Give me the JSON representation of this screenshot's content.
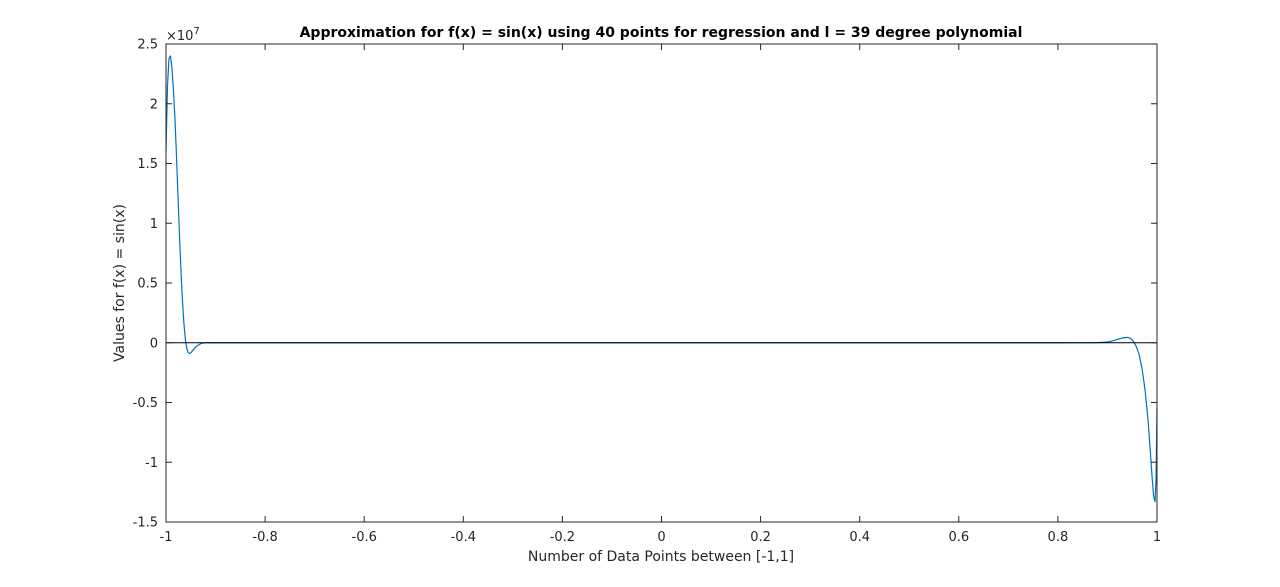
{
  "chart_data": {
    "type": "line",
    "title": "Approximation for f(x) = sin(x) using 40 points for regression and l = 39 degree polynomial",
    "xlabel": "Number of Data Points between [-1,1]",
    "ylabel": "Values for f(x) = sin(x)",
    "xlim": [
      -1,
      1
    ],
    "ylim": [
      -15000000,
      25000000
    ],
    "y_exponent_base": "×10",
    "y_exponent_power": "7",
    "y_tick_scale": 10000000,
    "xticks": [
      -1,
      -0.8,
      -0.6,
      -0.4,
      -0.2,
      0,
      0.2,
      0.4,
      0.6,
      0.8,
      1
    ],
    "xtick_labels": [
      "-1",
      "-0.8",
      "-0.6",
      "-0.4",
      "-0.2",
      "0",
      "0.2",
      "0.4",
      "0.6",
      "0.8",
      "1"
    ],
    "yticks": [
      -15000000,
      -10000000,
      -5000000,
      0,
      5000000,
      10000000,
      15000000,
      20000000,
      25000000
    ],
    "ytick_labels": [
      "-1.5",
      "-1",
      "-0.5",
      "0",
      "0.5",
      "1",
      "1.5",
      "2",
      "2.5"
    ],
    "grid": false,
    "colors": {
      "series": "#0072bd",
      "axes": "#262626"
    },
    "series": [
      {
        "x": [
          -1.0,
          -0.997,
          -0.994,
          -0.991,
          -0.988,
          -0.985,
          -0.982,
          -0.979,
          -0.976,
          -0.973,
          -0.97,
          -0.967,
          -0.964,
          -0.961,
          -0.958,
          -0.955,
          -0.952,
          -0.949,
          -0.946,
          -0.943,
          -0.94,
          -0.935,
          -0.93,
          -0.925,
          -0.92,
          -0.91,
          -0.9,
          -0.88,
          -0.8,
          -0.6,
          -0.4,
          -0.2,
          0,
          0.2,
          0.4,
          0.6,
          0.8,
          0.88,
          0.9,
          0.91,
          0.92,
          0.93,
          0.94,
          0.946,
          0.952,
          0.958,
          0.964,
          0.97,
          0.976,
          0.982,
          0.986,
          0.99,
          0.993,
          0.996,
          0.998,
          1.0
        ],
        "y": [
          16000000,
          21500000,
          23800000,
          24000000,
          23000000,
          21200000,
          18800000,
          15800000,
          12500000,
          9200000,
          6200000,
          3700000,
          1700000,
          300000,
          -500000,
          -850000,
          -900000,
          -800000,
          -650000,
          -500000,
          -350000,
          -200000,
          -80000,
          -20000,
          0,
          10000,
          0,
          0,
          0,
          0,
          0,
          0,
          0,
          0,
          0,
          0,
          0,
          10000,
          60000,
          150000,
          280000,
          400000,
          450000,
          380000,
          150000,
          -300000,
          -1000000,
          -2200000,
          -4000000,
          -6500000,
          -8800000,
          -11200000,
          -12800000,
          -13300000,
          -11500000,
          -5500000
        ]
      }
    ]
  }
}
